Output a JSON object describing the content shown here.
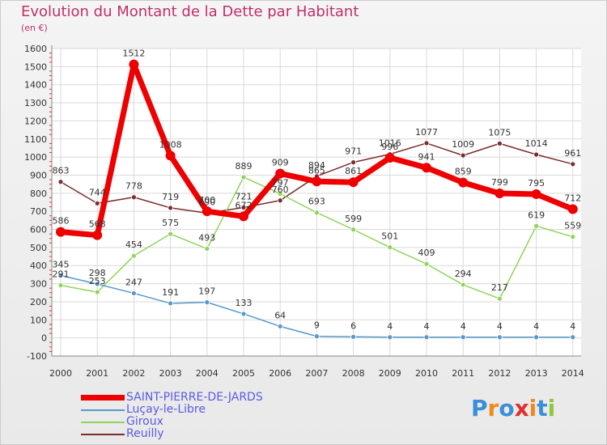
{
  "header": {
    "title": "Evolution du Montant de la Dette par Habitant",
    "unit": "(en €)"
  },
  "logo": {
    "text": "Proxiti",
    "letter_colors": [
      "#3a8fd8",
      "#f08a1c",
      "#3a8fd8",
      "#e03030",
      "#f08a1c",
      "#3a8fd8",
      "#8dc63f"
    ]
  },
  "colors": {
    "title": "#c0306a",
    "axis_text": "#333333",
    "grid": "#d9d9d9",
    "tick_red": "#e0303a",
    "legend_text": "#5a5ae6"
  },
  "chart_data": {
    "type": "line",
    "title": "Evolution du Montant de la Dette par Habitant",
    "ylabel": "(en €)",
    "xlabel": "",
    "ylim": [
      -100,
      1600
    ],
    "yticks": [
      -100,
      0,
      100,
      200,
      300,
      400,
      500,
      600,
      700,
      800,
      900,
      1000,
      1100,
      1200,
      1300,
      1400,
      1500,
      1600
    ],
    "grid": true,
    "legend_position": "bottom-left",
    "x": [
      "2000",
      "2001",
      "2002",
      "2003",
      "2004",
      "2005",
      "2006",
      "2007",
      "2008",
      "2009",
      "2010",
      "2011",
      "2012",
      "2013",
      "2014"
    ],
    "series": [
      {
        "name": "Reuilly",
        "color": "#7b2d2d",
        "values": [
          863,
          744,
          778,
          719,
          690,
          721,
          760,
          894,
          971,
          1016,
          1077,
          1009,
          1075,
          1014,
          961
        ]
      },
      {
        "name": "Giroux",
        "color": "#8fd45a",
        "values": [
          291,
          253,
          454,
          575,
          493,
          889,
          797,
          693,
          599,
          501,
          409,
          294,
          217,
          619,
          559
        ]
      },
      {
        "name": "Luçay-le-Libre",
        "color": "#5599cc",
        "values": [
          345,
          298,
          247,
          191,
          197,
          133,
          64,
          9,
          6,
          4,
          4,
          4,
          4,
          4,
          4
        ]
      },
      {
        "name": "SAINT-PIERRE-DE-JARDS",
        "color": "#ee0000",
        "values": [
          586,
          568,
          1512,
          1008,
          700,
          672,
          909,
          865,
          861,
          996,
          941,
          859,
          799,
          795,
          712
        ]
      }
    ]
  },
  "legend": [
    {
      "label": "SAINT-PIERRE-DE-JARDS",
      "color": "#ee0000"
    },
    {
      "label": "Luçay-le-Libre",
      "color": "#5599cc"
    },
    {
      "label": "Giroux",
      "color": "#8fd45a"
    },
    {
      "label": "Reuilly",
      "color": "#7b2d2d"
    }
  ]
}
